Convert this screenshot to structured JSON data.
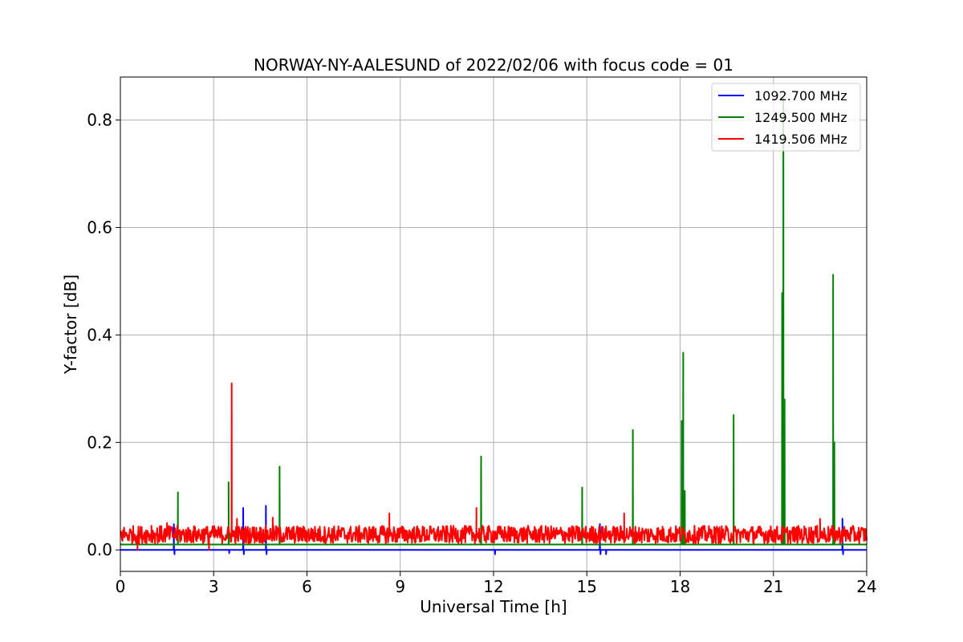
{
  "chart_data": {
    "type": "line",
    "title": "NORWAY-NY-AALESUND of 2022/02/06 with focus code = 01",
    "xlabel": "Universal Time [h]",
    "ylabel": "Y-factor [dB]",
    "xlim": [
      0,
      24
    ],
    "ylim": [
      -0.04,
      0.88
    ],
    "xticks": [
      0,
      3,
      6,
      9,
      12,
      15,
      18,
      21,
      24
    ],
    "xtick_labels": [
      "0",
      "3",
      "6",
      "9",
      "12",
      "15",
      "18",
      "21",
      "24"
    ],
    "yticks": [
      0.0,
      0.2,
      0.4,
      0.6,
      0.8
    ],
    "ytick_labels": [
      "0.0",
      "0.2",
      "0.4",
      "0.6",
      "0.8"
    ],
    "grid": true,
    "legend_position": "top-right",
    "series": [
      {
        "name": "1092.700 MHz",
        "color": "#0000ff",
        "baseline": 0.0,
        "noise_range": [
          0.0,
          0.0
        ],
        "spikes": [
          {
            "x": 1.72,
            "y": 0.048
          },
          {
            "x": 1.74,
            "y": -0.008
          },
          {
            "x": 3.5,
            "y": -0.006
          },
          {
            "x": 3.95,
            "y": 0.078
          },
          {
            "x": 3.97,
            "y": -0.008
          },
          {
            "x": 4.68,
            "y": 0.082
          },
          {
            "x": 4.7,
            "y": -0.008
          },
          {
            "x": 12.05,
            "y": -0.008
          },
          {
            "x": 15.42,
            "y": 0.048
          },
          {
            "x": 15.44,
            "y": -0.008
          },
          {
            "x": 15.62,
            "y": -0.008
          },
          {
            "x": 23.22,
            "y": 0.058
          },
          {
            "x": 23.24,
            "y": -0.008
          }
        ]
      },
      {
        "name": "1249.500 MHz",
        "color": "#008000",
        "baseline": 0.01,
        "noise_range": [
          0.01,
          0.01
        ],
        "spikes": [
          {
            "x": 1.85,
            "y": 0.107
          },
          {
            "x": 3.48,
            "y": 0.126
          },
          {
            "x": 5.12,
            "y": 0.155
          },
          {
            "x": 11.6,
            "y": 0.174
          },
          {
            "x": 14.85,
            "y": 0.116
          },
          {
            "x": 16.48,
            "y": 0.223
          },
          {
            "x": 18.05,
            "y": 0.24
          },
          {
            "x": 18.1,
            "y": 0.367
          },
          {
            "x": 18.15,
            "y": 0.11
          },
          {
            "x": 19.72,
            "y": 0.251
          },
          {
            "x": 21.28,
            "y": 0.478
          },
          {
            "x": 21.32,
            "y": 0.84
          },
          {
            "x": 21.36,
            "y": 0.28
          },
          {
            "x": 22.92,
            "y": 0.512
          },
          {
            "x": 22.96,
            "y": 0.2
          }
        ]
      },
      {
        "name": "1419.506 MHz",
        "color": "#ff0000",
        "baseline": 0.025,
        "noise_range": [
          0.012,
          0.045
        ],
        "spikes": [
          {
            "x": 1.0,
            "y": 0.045
          },
          {
            "x": 1.5,
            "y": 0.05
          },
          {
            "x": 3.58,
            "y": 0.31
          },
          {
            "x": 3.75,
            "y": 0.058
          },
          {
            "x": 4.9,
            "y": 0.06
          },
          {
            "x": 8.65,
            "y": 0.068
          },
          {
            "x": 11.45,
            "y": 0.078
          },
          {
            "x": 16.2,
            "y": 0.068
          },
          {
            "x": 22.5,
            "y": 0.058
          },
          {
            "x": 0.55,
            "y": 0.0
          },
          {
            "x": 2.85,
            "y": 0.0
          }
        ]
      }
    ]
  }
}
